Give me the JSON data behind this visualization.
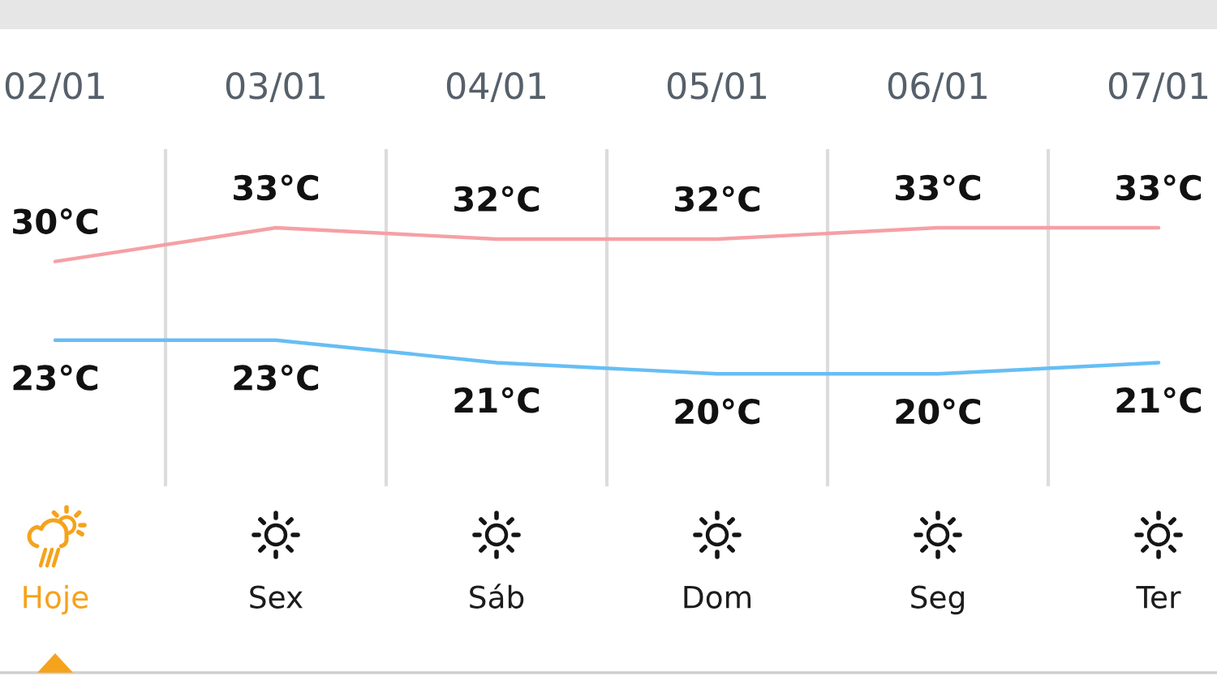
{
  "chart_data": {
    "type": "line",
    "categories": [
      "02/01",
      "03/01",
      "04/01",
      "05/01",
      "06/01",
      "07/01"
    ],
    "series": [
      {
        "color": "#f5a0a5",
        "values": [
          30,
          33,
          32,
          32,
          33,
          33
        ],
        "value_labels": [
          "30°C",
          "33°C",
          "32°C",
          "32°C",
          "33°C",
          "33°C"
        ]
      },
      {
        "color": "#66bef4",
        "values": [
          23,
          23,
          21,
          20,
          20,
          21
        ],
        "value_labels": [
          "23°C",
          "23°C",
          "21°C",
          "20°C",
          "20°C",
          "21°C"
        ]
      }
    ],
    "ylim": [
      10,
      40
    ],
    "grid": "x",
    "tick_labels": "x",
    "annotations": [
      "Hoje",
      "Sex",
      "Sáb",
      "Dom",
      "Seg",
      "Ter"
    ]
  }
}
